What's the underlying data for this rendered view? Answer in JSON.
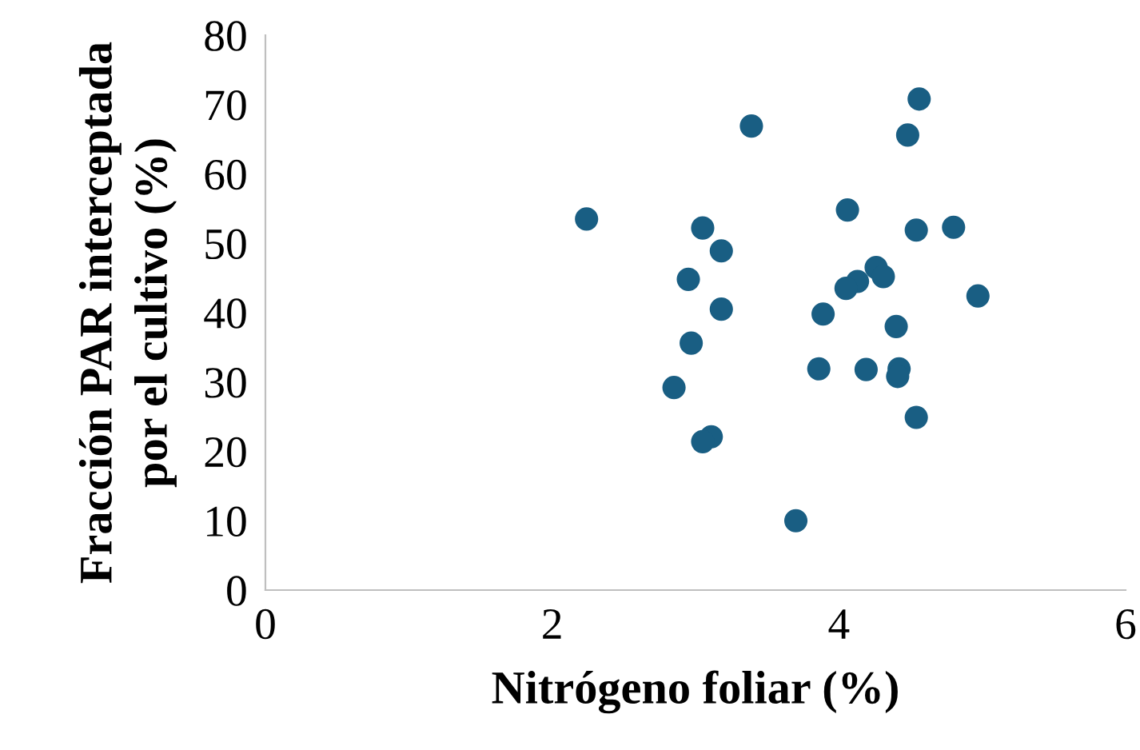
{
  "chart_data": {
    "type": "scatter",
    "xlabel": "Nitrógeno foliar (%)",
    "ylabel": "Fracción PAR interceptada\npor el cultivo (%)",
    "xlim": [
      0,
      6
    ],
    "xticks": [
      0,
      2,
      4,
      6
    ],
    "ylim": [
      0,
      80
    ],
    "yticks": [
      0,
      10,
      20,
      30,
      40,
      50,
      60,
      70,
      80
    ],
    "grid": false,
    "marker": "circle",
    "series": [
      {
        "color": "#195e83",
        "x": [
          2.24,
          3.39,
          4.56,
          4.48,
          4.06,
          3.05,
          4.54,
          4.8,
          3.18,
          2.95,
          4.26,
          4.31,
          4.13,
          4.05,
          4.97,
          3.18,
          3.89,
          4.4,
          2.97,
          3.86,
          4.19,
          4.42,
          4.41,
          2.85,
          4.54,
          3.11,
          3.05,
          3.7
        ],
        "values": [
          53.5,
          66.9,
          70.8,
          65.6,
          54.8,
          52.2,
          51.9,
          52.3,
          48.9,
          44.8,
          46.5,
          45.2,
          44.5,
          43.5,
          42.4,
          40.5,
          39.8,
          38.0,
          35.6,
          31.9,
          31.8,
          31.9,
          30.8,
          29.2,
          24.9,
          22.1,
          21.4,
          10.0
        ]
      }
    ]
  }
}
